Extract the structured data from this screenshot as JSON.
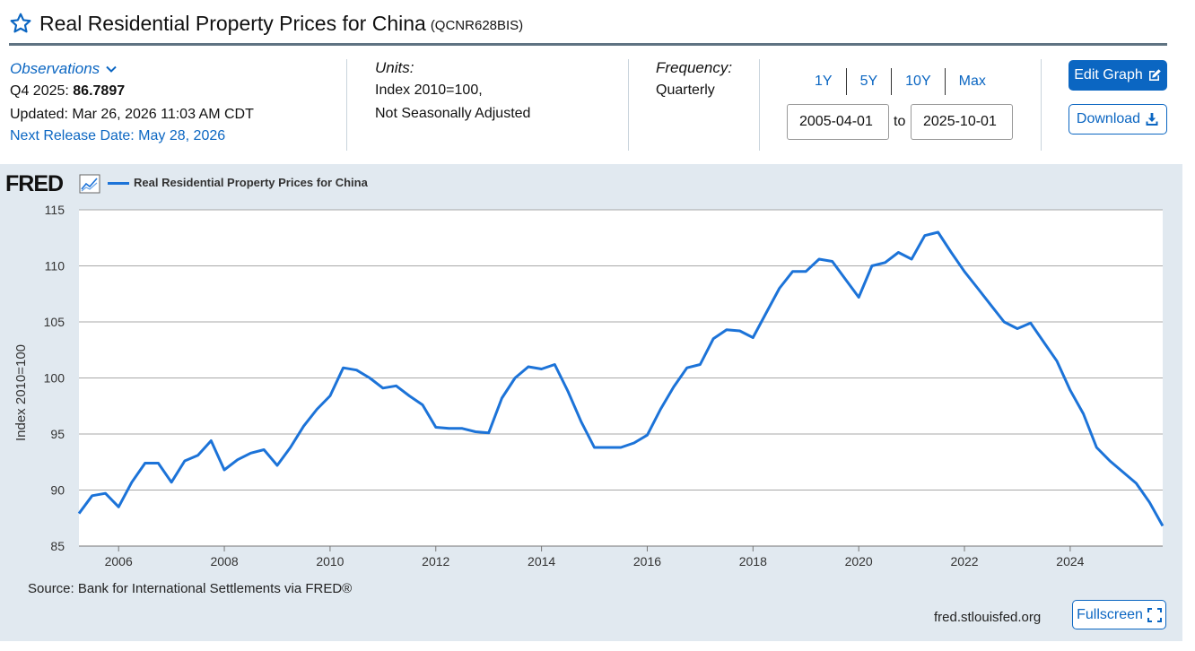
{
  "header": {
    "title": "Real Residential Property Prices for China",
    "series_id": "(QCNR628BIS)"
  },
  "info": {
    "observations_label": "Observations",
    "latest_prefix": "Q4 2025:",
    "latest_value": "86.7897",
    "updated": "Updated: Mar 26, 2026 11:03 AM CDT",
    "next_release": "Next Release Date: May 28, 2026",
    "units_label": "Units:",
    "units_line1": "Index 2010=100,",
    "units_line2": "Not Seasonally Adjusted",
    "frequency_label": "Frequency:",
    "frequency_value": "Quarterly"
  },
  "range": {
    "links": [
      "1Y",
      "5Y",
      "10Y",
      "Max"
    ],
    "start": "2005-04-01",
    "to_label": "to",
    "end": "2025-10-01"
  },
  "buttons": {
    "edit_graph": "Edit Graph",
    "download": "Download",
    "fullscreen": "Fullscreen"
  },
  "chart_footer": {
    "logo": "FRED",
    "source": "Source: Bank for International Settlements via FRED®",
    "url": "fred.stlouisfed.org"
  },
  "colors": {
    "accent": "#0b66c2",
    "series_line": "#1c73d8",
    "panel_bg": "#e1e9f0"
  },
  "chart_data": {
    "type": "line",
    "ylabel": "Index 2010=100",
    "xlabel": "",
    "ylim": [
      85,
      115
    ],
    "yticks": [
      85,
      90,
      95,
      100,
      105,
      110,
      115
    ],
    "xticks": [
      2006,
      2008,
      2010,
      2012,
      2014,
      2016,
      2018,
      2020,
      2022,
      2024
    ],
    "xlim": [
      "2005-04-01",
      "2025-10-01"
    ],
    "grid": "horizontal",
    "legend": "top-left",
    "series": [
      {
        "name": "Real Residential Property Prices for China",
        "x": [
          "2005-04-01",
          "2005-07-01",
          "2005-10-01",
          "2006-01-01",
          "2006-04-01",
          "2006-07-01",
          "2006-10-01",
          "2007-01-01",
          "2007-04-01",
          "2007-07-01",
          "2007-10-01",
          "2008-01-01",
          "2008-04-01",
          "2008-07-01",
          "2008-10-01",
          "2009-01-01",
          "2009-04-01",
          "2009-07-01",
          "2009-10-01",
          "2010-01-01",
          "2010-04-01",
          "2010-07-01",
          "2010-10-01",
          "2011-01-01",
          "2011-04-01",
          "2011-07-01",
          "2011-10-01",
          "2012-01-01",
          "2012-04-01",
          "2012-07-01",
          "2012-10-01",
          "2013-01-01",
          "2013-04-01",
          "2013-07-01",
          "2013-10-01",
          "2014-01-01",
          "2014-04-01",
          "2014-07-01",
          "2014-10-01",
          "2015-01-01",
          "2015-04-01",
          "2015-07-01",
          "2015-10-01",
          "2016-01-01",
          "2016-04-01",
          "2016-07-01",
          "2016-10-01",
          "2017-01-01",
          "2017-04-01",
          "2017-07-01",
          "2017-10-01",
          "2018-01-01",
          "2018-04-01",
          "2018-07-01",
          "2018-10-01",
          "2019-01-01",
          "2019-04-01",
          "2019-07-01",
          "2019-10-01",
          "2020-01-01",
          "2020-04-01",
          "2020-07-01",
          "2020-10-01",
          "2021-01-01",
          "2021-04-01",
          "2021-07-01",
          "2021-10-01",
          "2022-01-01",
          "2022-04-01",
          "2022-07-01",
          "2022-10-01",
          "2023-01-01",
          "2023-04-01",
          "2023-07-01",
          "2023-10-01",
          "2024-01-01",
          "2024-04-01",
          "2024-07-01",
          "2024-10-01",
          "2025-01-01",
          "2025-04-01",
          "2025-07-01",
          "2025-10-01"
        ],
        "values": [
          87.9,
          89.5,
          89.7,
          88.5,
          90.7,
          92.4,
          92.4,
          90.7,
          92.6,
          93.1,
          94.4,
          91.8,
          92.7,
          93.3,
          93.6,
          92.2,
          93.8,
          95.7,
          97.2,
          98.4,
          100.9,
          100.7,
          100.0,
          99.1,
          99.3,
          98.4,
          97.6,
          95.6,
          95.5,
          95.5,
          95.2,
          95.1,
          98.2,
          100.0,
          101.0,
          100.8,
          101.2,
          98.8,
          96.1,
          93.8,
          93.8,
          93.8,
          94.2,
          94.9,
          97.2,
          99.2,
          100.9,
          101.2,
          103.5,
          104.3,
          104.2,
          103.6,
          105.8,
          108.0,
          109.5,
          109.5,
          110.6,
          110.4,
          108.8,
          107.2,
          110.0,
          110.3,
          111.2,
          110.6,
          112.7,
          113.0,
          111.2,
          109.5,
          108.0,
          106.5,
          105.0,
          104.4,
          104.9,
          103.2,
          101.5,
          98.9,
          96.8,
          93.8,
          92.6,
          91.6,
          90.6,
          88.9,
          86.8
        ]
      }
    ]
  }
}
